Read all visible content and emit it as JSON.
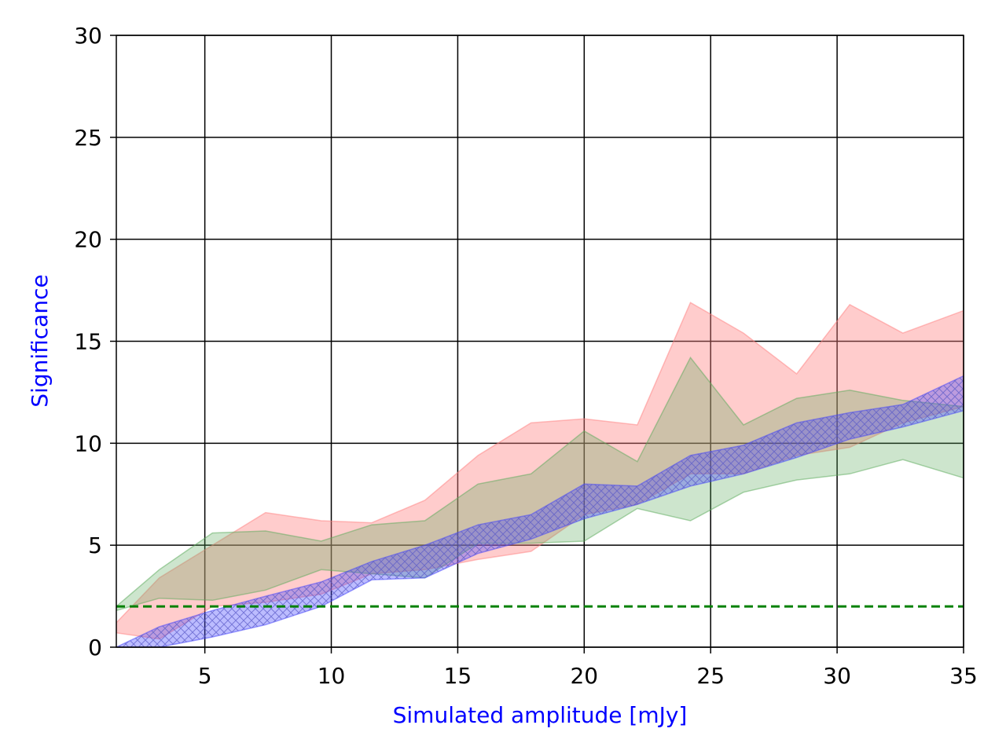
{
  "chart_data": {
    "type": "area",
    "xlabel": "Simulated amplitude [mJy]",
    "ylabel": "Significance",
    "xlim": [
      1.5,
      35
    ],
    "ylim": [
      0,
      30
    ],
    "xticks": [
      5,
      10,
      15,
      20,
      25,
      30,
      35
    ],
    "yticks": [
      0,
      5,
      10,
      15,
      20,
      25,
      30
    ],
    "grid": true,
    "colors": {
      "red_band": "#ff8080",
      "green_band": "#5aaa5a",
      "blue_band": "#4040ff",
      "threshold": "#008000",
      "label": "#0000ff"
    },
    "threshold": 2,
    "series": [
      {
        "x": [
          1.5,
          3.2,
          5.3,
          7.4,
          9.6,
          11.6,
          13.7,
          15.8,
          17.9,
          20.0,
          22.1,
          24.2,
          26.3,
          28.4,
          30.5,
          32.6,
          35.0
        ],
        "lower": [
          0.7,
          0.4,
          2.0,
          2.2,
          2.6,
          3.6,
          3.8,
          4.3,
          4.7,
          6.5,
          7.0,
          8.5,
          8.5,
          9.4,
          9.8,
          11.0,
          11.8
        ],
        "upper": [
          1.2,
          3.4,
          5.0,
          6.6,
          6.2,
          6.1,
          7.2,
          9.4,
          11.0,
          11.2,
          10.9,
          16.9,
          15.4,
          13.4,
          16.8,
          15.4,
          16.5
        ]
      },
      {
        "x": [
          1.5,
          3.2,
          5.3,
          7.4,
          9.6,
          11.6,
          13.7,
          15.8,
          17.9,
          20.0,
          22.1,
          24.2,
          26.3,
          28.4,
          30.5,
          32.6,
          35.0
        ],
        "lower": [
          1.8,
          2.4,
          2.3,
          2.8,
          3.8,
          3.6,
          3.4,
          5.1,
          5.1,
          5.2,
          6.8,
          6.2,
          7.6,
          8.2,
          8.5,
          9.2,
          8.3
        ],
        "upper": [
          2.0,
          3.8,
          5.6,
          5.7,
          5.2,
          6.0,
          6.2,
          8.0,
          8.5,
          10.6,
          9.1,
          14.2,
          10.9,
          12.2,
          12.6,
          12.1,
          11.8
        ]
      },
      {
        "x": [
          1.5,
          3.2,
          5.3,
          7.4,
          9.6,
          11.6,
          13.7,
          15.8,
          17.9,
          20.0,
          22.1,
          24.2,
          26.3,
          28.4,
          30.5,
          32.6,
          35.0
        ],
        "lower": [
          0.0,
          0.0,
          0.5,
          1.1,
          2.0,
          3.3,
          3.4,
          4.6,
          5.3,
          6.3,
          7.0,
          7.9,
          8.5,
          9.3,
          10.2,
          10.8,
          11.6
        ],
        "upper": [
          0.0,
          1.0,
          1.8,
          2.5,
          3.2,
          4.2,
          5.0,
          6.0,
          6.5,
          8.0,
          7.9,
          9.4,
          9.9,
          11.0,
          11.5,
          11.9,
          13.3
        ]
      }
    ]
  }
}
